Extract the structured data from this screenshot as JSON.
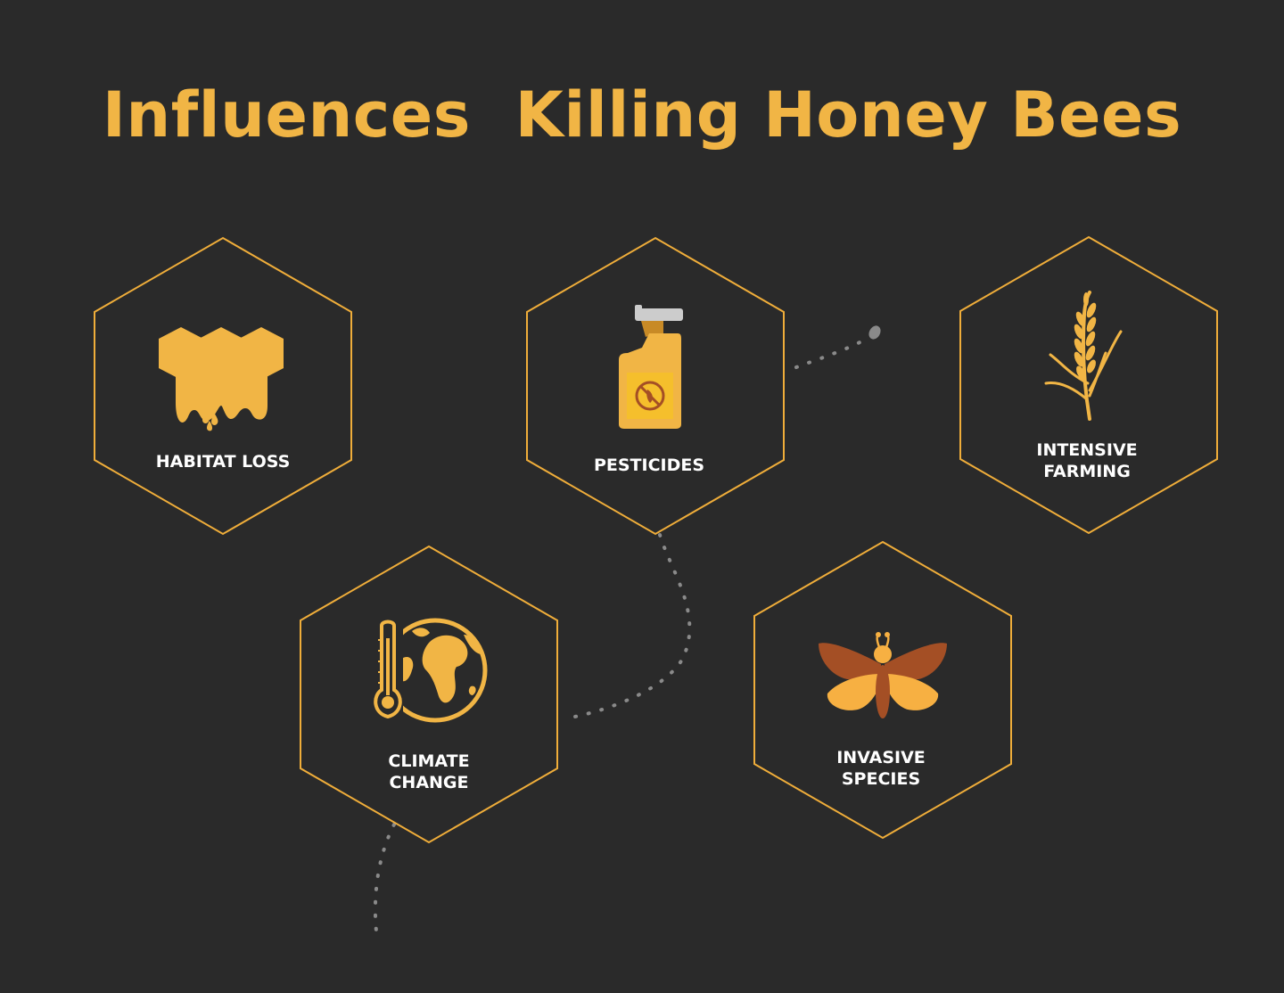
{
  "title": "Influences  Killing Honey Bees",
  "colors": {
    "background": "#2a2a2a",
    "accent": "#f1b545",
    "hex_stroke": "#efad3a",
    "dots": "#8a8a8a",
    "moth_dark": "#a44f25"
  },
  "influences": [
    {
      "key": "habitat",
      "lines": [
        "HABITAT LOSS"
      ],
      "icon": "honeycomb-icon"
    },
    {
      "key": "pesticides",
      "lines": [
        "PESTICIDES"
      ],
      "icon": "spray-bottle-icon"
    },
    {
      "key": "farming",
      "lines": [
        "INTENSIVE",
        "FARMING"
      ],
      "icon": "wheat-icon"
    },
    {
      "key": "climate",
      "lines": [
        "CLIMATE",
        "CHANGE"
      ],
      "icon": "thermometer-globe-icon"
    },
    {
      "key": "invasive",
      "lines": [
        "INVASIVE",
        "SPECIES"
      ],
      "icon": "moth-icon"
    }
  ]
}
